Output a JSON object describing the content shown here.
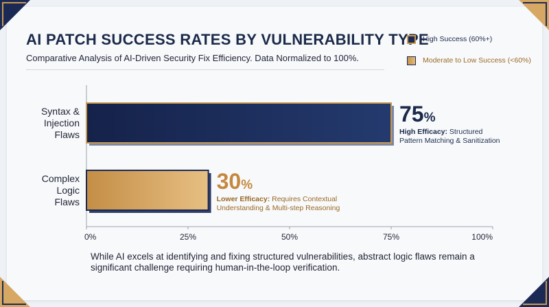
{
  "chart_data": {
    "type": "bar",
    "orientation": "horizontal",
    "title": "AI PATCH SUCCESS RATES BY VULNERABILITY TYPE",
    "subtitle": "Comparative Analysis of AI-Driven Security Fix Efficiency. Data Normalized to 100%.",
    "categories": [
      [
        "Syntax &",
        "Injection",
        "Flaws"
      ],
      [
        "Complex",
        "Logic",
        "Flaws"
      ]
    ],
    "values": [
      75,
      30
    ],
    "value_labels": [
      "75",
      "30"
    ],
    "value_unit": "%",
    "annotations": [
      {
        "bold": "High Efficacy:",
        "lines": [
          " Structured",
          "Pattern Matching & Sanitization"
        ]
      },
      {
        "bold": "Lower Efficacy:",
        "lines": [
          " Requires Contextual",
          "Understanding & Multi-step Reasoning"
        ]
      }
    ],
    "xlim": [
      0,
      100
    ],
    "xticks": [
      "0%",
      "25%",
      "50%",
      "75%",
      "100%"
    ],
    "grid": false,
    "legend": {
      "position": "top-right",
      "items": [
        {
          "label": "High Success (60%+)",
          "color": "#1b2a55"
        },
        {
          "label": "Moderate to Low Success (<60%)",
          "color": "#d6a863"
        }
      ]
    },
    "colors": {
      "high": "#1b2a55",
      "moderate": "#d6a863",
      "accent": "#c79a52"
    }
  },
  "footer": "While AI excels at identifying and fixing structured vulnerabilities, abstract logic flaws remain a significant challenge requiring human-in-the-loop verification."
}
